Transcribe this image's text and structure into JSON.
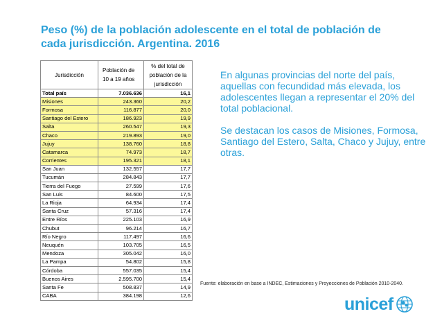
{
  "slide": {
    "title_line1": "Peso (%) de la población adolescente en el total de población de",
    "title_line2": "cada jurisdicción. Argentina. 2016",
    "body_p1": "En algunas provincias del norte del país, aquellas con fecundidad más elevada,  los adolescentes llegan a representar el 20% del total poblacional.",
    "body_p2": "Se destacan los casos de Misiones, Formosa, Santiago del Estero, Salta, Chaco y Jujuy, entre otras.",
    "source": "Fuente: elaboración en base a INDEC, Estimaciones y Proyecciones de Población 2010-2040.",
    "logo_text": "unicef",
    "brand_color": "#2aa0d8",
    "highlight_color": "#fcf89a"
  },
  "table": {
    "headers": [
      "Jurisdicción",
      "Población de 10 a 19 años",
      "% del total de población de la jurisdicción"
    ],
    "rows": [
      {
        "name": "Total país",
        "pop": "7.036.636",
        "pct": "16,1"
      },
      {
        "name": "Misiones",
        "pop": "243.360",
        "pct": "20,2"
      },
      {
        "name": "Formosa",
        "pop": "116.877",
        "pct": "20,0"
      },
      {
        "name": "Santiago del Estero",
        "pop": "186.923",
        "pct": "19,9"
      },
      {
        "name": "Salta",
        "pop": "260.547",
        "pct": "19,3"
      },
      {
        "name": "Chaco",
        "pop": "219.893",
        "pct": "19,0"
      },
      {
        "name": "Jujuy",
        "pop": "138.760",
        "pct": "18,8"
      },
      {
        "name": "Catamarca",
        "pop": "74.973",
        "pct": "18,7"
      },
      {
        "name": "Corrientes",
        "pop": "195.321",
        "pct": "18,1"
      },
      {
        "name": "San Juan",
        "pop": "132.557",
        "pct": "17,7"
      },
      {
        "name": "Tucumán",
        "pop": "284.843",
        "pct": "17,7"
      },
      {
        "name": "Tierra del Fuego",
        "pop": "27.599",
        "pct": "17,6"
      },
      {
        "name": "San Luis",
        "pop": "84.600",
        "pct": "17,5"
      },
      {
        "name": "La Rioja",
        "pop": "64.934",
        "pct": "17,4"
      },
      {
        "name": "Santa Cruz",
        "pop": "57.316",
        "pct": "17,4"
      },
      {
        "name": "Entre Ríos",
        "pop": "225.103",
        "pct": "16,9"
      },
      {
        "name": "Chubut",
        "pop": "96.214",
        "pct": "16,7"
      },
      {
        "name": "Río Negro",
        "pop": "117.497",
        "pct": "16,6"
      },
      {
        "name": "Neuquén",
        "pop": "103.705",
        "pct": "16,5"
      },
      {
        "name": "Mendoza",
        "pop": "305.042",
        "pct": "16,0"
      },
      {
        "name": "La Pampa",
        "pop": "54.802",
        "pct": "15,8"
      },
      {
        "name": "Córdoba",
        "pop": "557.035",
        "pct": "15,4"
      },
      {
        "name": "Buenos Aires",
        "pop": "2.595.700",
        "pct": "15,4"
      },
      {
        "name": "Santa Fe",
        "pop": "508.837",
        "pct": "14,9"
      },
      {
        "name": "CABA",
        "pop": "384.198",
        "pct": "12,6"
      }
    ]
  }
}
